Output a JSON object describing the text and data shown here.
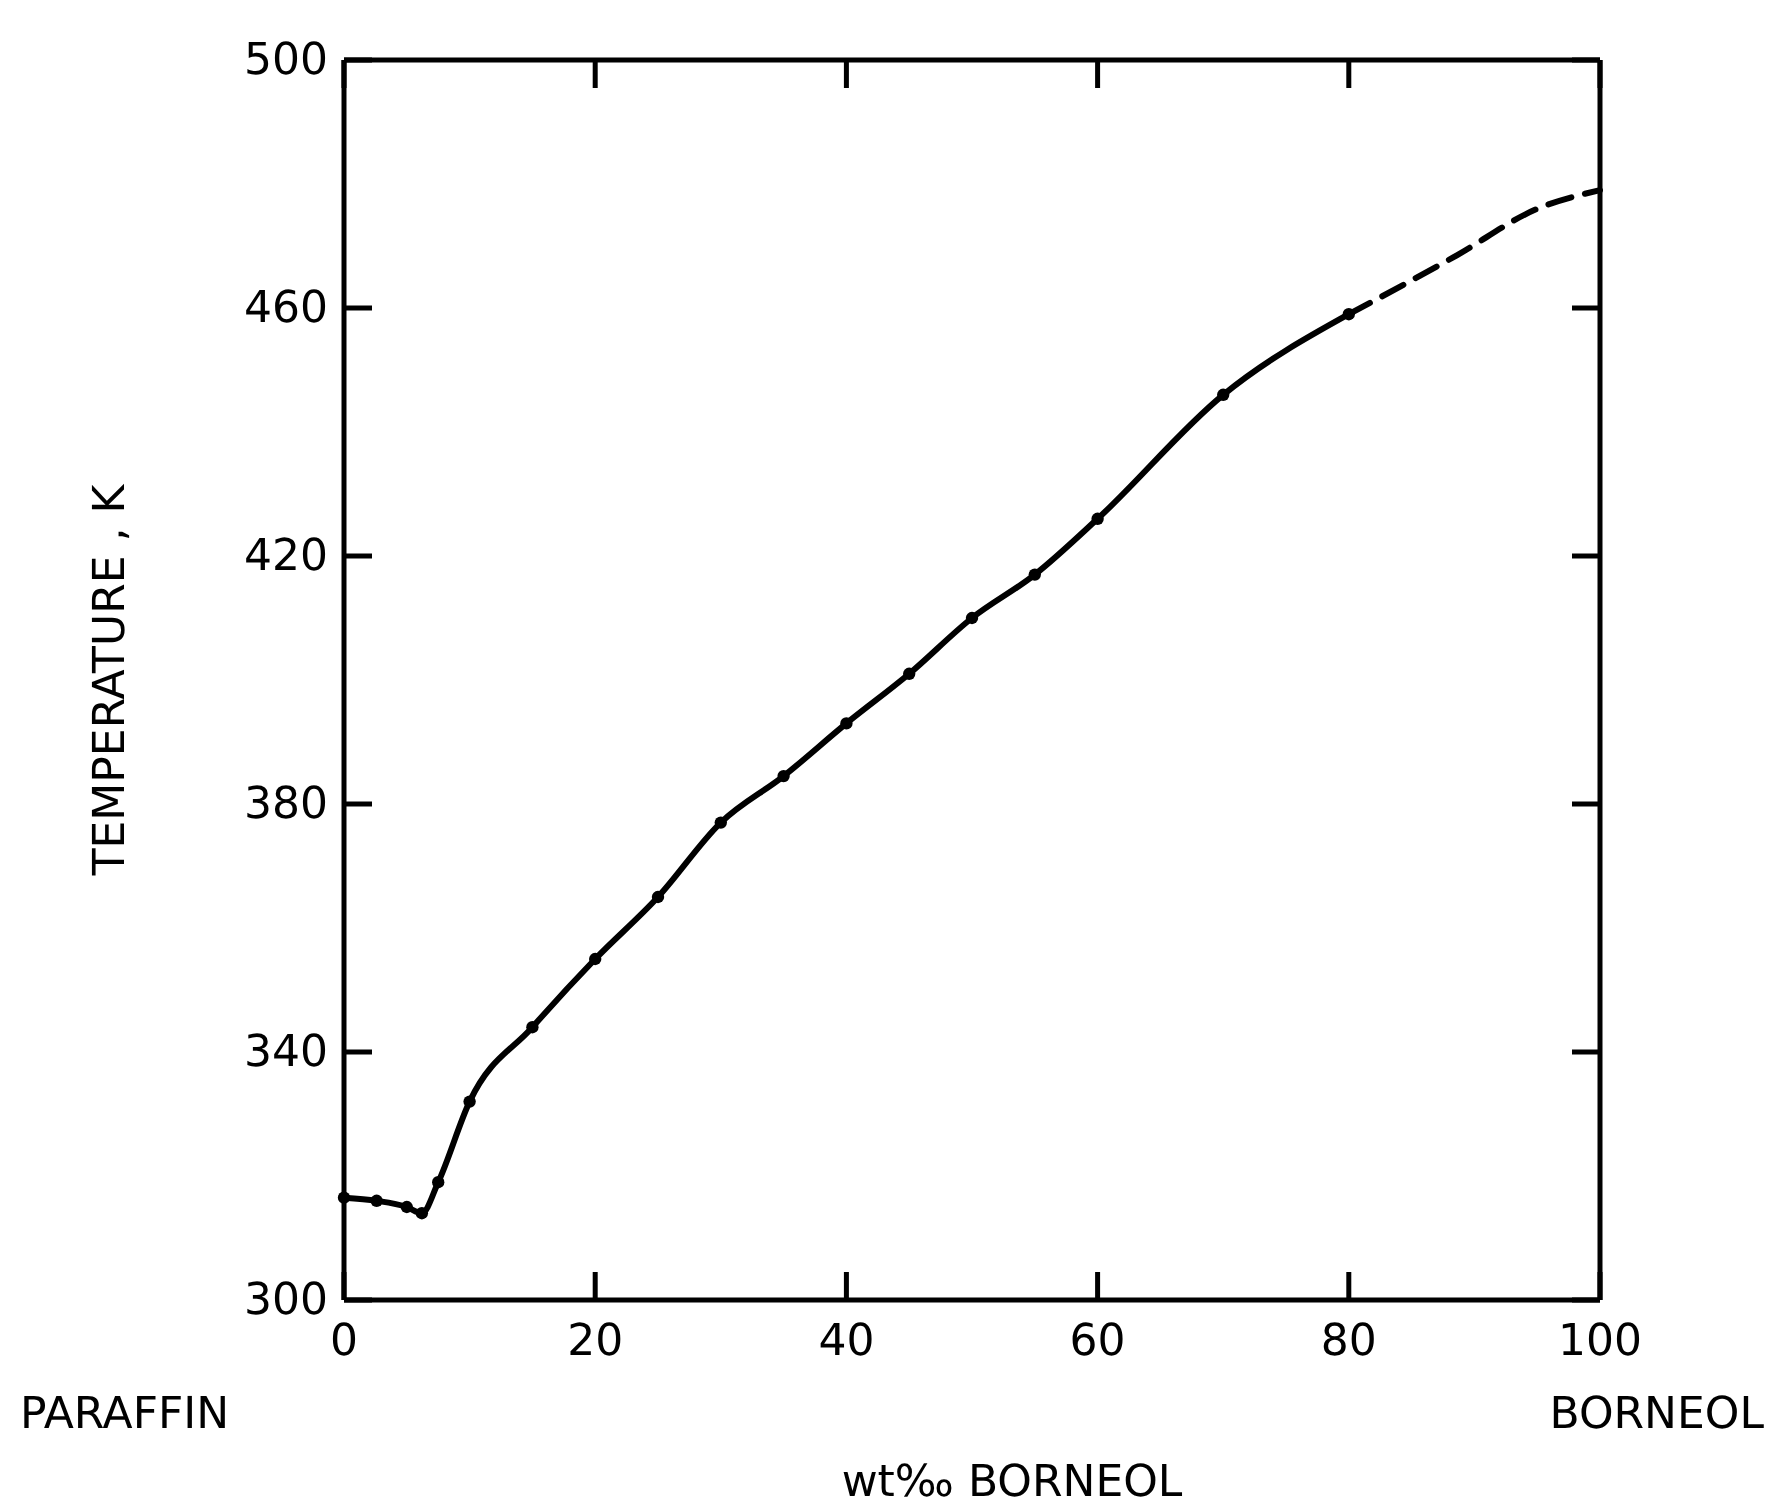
{
  "chart_data": {
    "type": "line",
    "xlabel": "wt‰ BORNEOL",
    "ylabel": "TEMPERATURE , K",
    "xlim": [
      0,
      100
    ],
    "xticks": [
      0,
      20,
      40,
      60,
      80,
      100
    ],
    "ylim": [
      300,
      500
    ],
    "yticks": [
      300,
      340,
      380,
      420,
      460,
      500
    ],
    "annotations": [
      "PARAFFIN",
      "BORNEOL"
    ],
    "series": [
      {
        "color": "#000000",
        "marker": "circle",
        "line_style": "solid",
        "x": [
          0,
          2.6,
          5,
          6.2,
          7.5,
          10,
          15,
          20,
          25,
          30,
          35,
          40,
          45,
          50,
          55,
          60,
          70,
          80
        ],
        "values": [
          316.5,
          316,
          315,
          314,
          319,
          332,
          344,
          355,
          365,
          377,
          384.5,
          393,
          401,
          410,
          417,
          426,
          446,
          459
        ]
      },
      {
        "color": "#000000",
        "marker": "none",
        "line_style": "dashed",
        "x": [
          80,
          88.6,
          95,
          100
        ],
        "values": [
          459,
          468.5,
          476,
          479
        ]
      }
    ]
  }
}
